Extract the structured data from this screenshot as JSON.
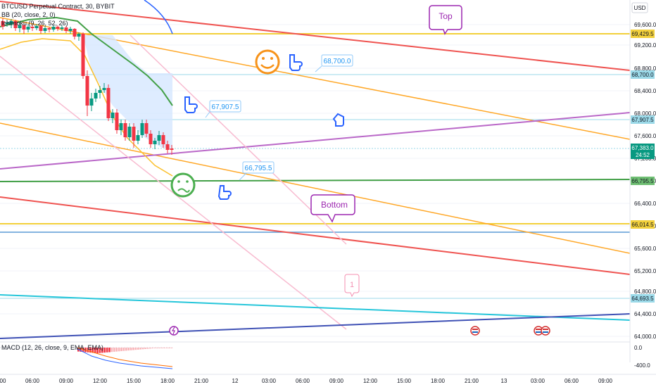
{
  "legend": {
    "symbol_line": "BTCUSD Perpetual Contract, 30, BYBIT",
    "bb_line": "BB (20, close, 2, 0)",
    "ichimoku_line": "Ichimoku (9, 26, 52, 26)",
    "macd_line": "MACD (12, 26, close, 9, EMA, EMA)"
  },
  "price_axis": {
    "currency": "USD",
    "ticks": [
      "69,600.0",
      "69,200.0",
      "68,800.0",
      "68,400.0",
      "68,000.0",
      "67,600.0",
      "67,200.0",
      "66,800.0",
      "66,400.0",
      "66,000.0",
      "65,600.0",
      "65,200.0",
      "64,800.0",
      "64,400.0",
      "64,000.0"
    ],
    "price_tags": [
      {
        "label": "69,429.5",
        "color": "#f2d03b"
      },
      {
        "label": "68,700.0",
        "color": "#9bd9e8"
      },
      {
        "label": "67,907.5",
        "color": "#9bd9e8"
      },
      {
        "label": "66,795.5",
        "color": "#6fbf73"
      },
      {
        "label": "66,014.5",
        "color": "#f2d03b"
      },
      {
        "label": "64,693.5",
        "color": "#9bd9e8"
      }
    ],
    "current_price": "67,383.0",
    "countdown": "24:52",
    "current_color": "#089981"
  },
  "macd_axis": {
    "ticks": [
      "0.0",
      "-400.0"
    ]
  },
  "time_axis": {
    "ticks": [
      "00",
      "06:00",
      "09:00",
      "12:00",
      "15:00",
      "18:00",
      "21:00",
      "12",
      "03:00",
      "06:00",
      "09:00",
      "12:00",
      "15:00",
      "18:00",
      "21:00",
      "13",
      "03:00",
      "06:00",
      "09:00"
    ]
  },
  "annotations": {
    "callouts": [
      {
        "label": "Top",
        "color": "#9c27b0"
      },
      {
        "label": "Bottom",
        "color": "#9c27b0"
      },
      {
        "label": "1",
        "color": "#f48fb1"
      }
    ],
    "price_callouts": [
      "68,700.0",
      "67,907.5",
      "66,795.5"
    ],
    "emoji": [
      {
        "name": "smiley-face-icon",
        "color": "#f7931a"
      },
      {
        "name": "sick-face-icon",
        "color": "#4caf50"
      },
      {
        "name": "pointing-hand-icon"
      },
      {
        "name": "pointing-hand-icon"
      },
      {
        "name": "pointing-hand-icon"
      },
      {
        "name": "pointing-hand-icon"
      }
    ]
  },
  "colors": {
    "bull_candle": "#089981",
    "bear_candle": "#f23645",
    "bb_basis": "#4caf50",
    "bb_lower": "#ffeb3b",
    "trend_red": "#ef5350",
    "trend_orange": "#ffa726",
    "trend_purple": "#ba68c8",
    "trend_cyan": "#4dd0e1",
    "trend_navy": "#3f51b5",
    "trend_pink": "#f8bbd0"
  }
}
